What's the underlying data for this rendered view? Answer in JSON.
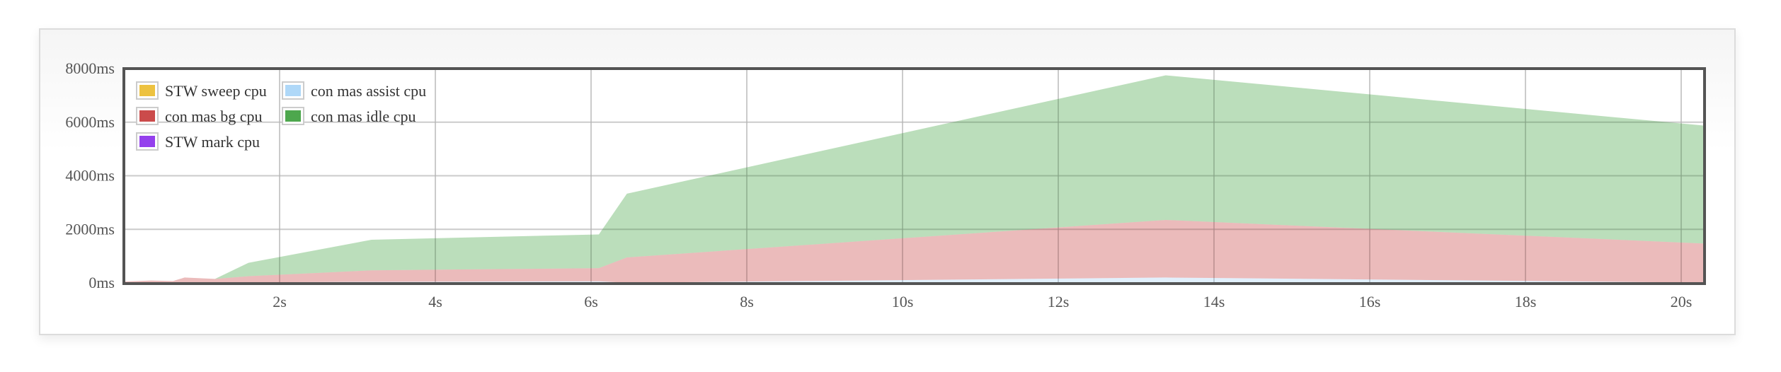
{
  "chart_data": {
    "type": "area",
    "stacked": true,
    "title": "",
    "xlabel": "",
    "ylabel": "",
    "x_unit": "s",
    "y_unit": "ms",
    "xlim": [
      0,
      20.3
    ],
    "ylim": [
      0,
      8000
    ],
    "x_ticks": [
      2,
      4,
      6,
      8,
      10,
      12,
      14,
      16,
      18,
      20
    ],
    "x_tick_labels": [
      "2s",
      "4s",
      "6s",
      "8s",
      "10s",
      "12s",
      "14s",
      "16s",
      "18s",
      "20s"
    ],
    "y_ticks": [
      0,
      2000,
      4000,
      6000,
      8000
    ],
    "y_tick_labels": [
      "0ms",
      "2000ms",
      "4000ms",
      "6000ms",
      "8000ms"
    ],
    "grid": true,
    "legend_position": "top-left",
    "x": [
      0,
      0.35,
      0.63,
      0.78,
      1.17,
      1.6,
      3.18,
      6.1,
      6.46,
      13.38,
      20.3
    ],
    "series": [
      {
        "name": "STW sweep cpu",
        "color": "#edc240",
        "values": [
          0,
          0,
          0,
          0,
          0,
          0,
          0,
          0,
          0,
          0,
          0
        ]
      },
      {
        "name": "con mas assist cpu",
        "color": "#afd8f8",
        "values": [
          0,
          0,
          0,
          0,
          10,
          20,
          40,
          60,
          5,
          200,
          10
        ]
      },
      {
        "name": "con mas bg cpu",
        "color": "#cb4b4b",
        "values": [
          50,
          90,
          70,
          200,
          140,
          230,
          430,
          490,
          945,
          2150,
          1460
        ]
      },
      {
        "name": "con mas idle cpu",
        "color": "#4da74d",
        "values": [
          0,
          0,
          0,
          0,
          0,
          500,
          1140,
          1260,
          2380,
          5400,
          4400
        ]
      },
      {
        "name": "STW mark cpu",
        "color": "#9440ed",
        "values": [
          0,
          0,
          0,
          0,
          0,
          0,
          0,
          0,
          0,
          0,
          0
        ]
      }
    ],
    "legend_order": [
      "STW sweep cpu",
      "con mas assist cpu",
      "con mas bg cpu",
      "con mas idle cpu",
      "STW mark cpu"
    ]
  }
}
